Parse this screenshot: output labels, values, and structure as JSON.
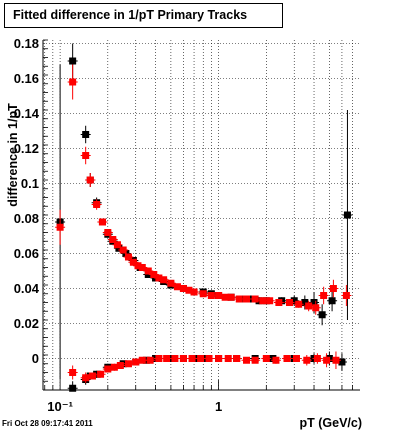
{
  "footer": "Fri Oct 28 09:17:41 2011",
  "chart_data": {
    "type": "scatter",
    "title": "Fitted difference in 1/pT  Primary Tracks",
    "xlabel": "pT (GeV/c)",
    "ylabel": "difference in 1/pT",
    "xscale": "log",
    "xlim": [
      0.078,
      7.8
    ],
    "ylim": [
      -0.018,
      0.182
    ],
    "grid": true,
    "y_ticks": [
      0,
      0.02,
      0.04,
      0.06,
      0.08,
      0.1,
      0.12,
      0.14,
      0.16,
      0.18
    ],
    "y_tick_labels": [
      "0",
      "0.02",
      "0.04",
      "0.06",
      "0.08",
      "0.1",
      "0.12",
      "0.14",
      "0.16",
      "0.18"
    ],
    "x_major_ticks": [
      0.1,
      1
    ],
    "x_tick_labels": [
      "10⁻¹",
      "1"
    ],
    "series": [
      {
        "color": "#000000",
        "points": [
          [
            0.1,
            0.078,
            0.09
          ],
          [
            0.12,
            0.17,
            0.01
          ],
          [
            0.145,
            0.128,
            0.005
          ],
          [
            0.155,
            0.102,
            0.004
          ],
          [
            0.17,
            0.089,
            0.003
          ],
          [
            0.185,
            0.078,
            0.002
          ],
          [
            0.2,
            0.071,
            0.002
          ],
          [
            0.215,
            0.067,
            0.0015
          ],
          [
            0.235,
            0.063,
            0.0015
          ],
          [
            0.26,
            0.06,
            0.0015
          ],
          [
            0.29,
            0.056,
            0.001
          ],
          [
            0.32,
            0.052,
            0.001
          ],
          [
            0.36,
            0.048,
            0.001
          ],
          [
            0.4,
            0.046,
            0.001
          ],
          [
            0.45,
            0.044,
            0.001
          ],
          [
            0.5,
            0.042,
            0.001
          ],
          [
            0.6,
            0.04,
            0.001
          ],
          [
            0.7,
            0.038,
            0.001
          ],
          [
            0.8,
            0.038,
            0.001
          ],
          [
            0.9,
            0.037,
            0.001
          ],
          [
            1.0,
            0.036,
            0.001
          ],
          [
            1.2,
            0.035,
            0.001
          ],
          [
            1.4,
            0.034,
            0.001
          ],
          [
            1.6,
            0.034,
            0.001
          ],
          [
            1.8,
            0.033,
            0.002
          ],
          [
            2.0,
            0.033,
            0.002
          ],
          [
            2.5,
            0.033,
            0.002
          ],
          [
            3.0,
            0.033,
            0.003
          ],
          [
            3.5,
            0.032,
            0.004
          ],
          [
            4.0,
            0.032,
            0.006
          ],
          [
            4.5,
            0.025,
            0.006
          ],
          [
            5.2,
            0.033,
            0.006
          ],
          [
            6.5,
            0.082,
            0.06
          ],
          [
            0.12,
            -0.017,
            0.004
          ],
          [
            0.145,
            -0.012,
            0.003
          ],
          [
            0.155,
            -0.01,
            0.002
          ],
          [
            0.17,
            -0.009,
            0.002
          ],
          [
            0.2,
            -0.005,
            0.002
          ],
          [
            0.25,
            -0.003,
            0.001
          ],
          [
            0.3,
            -0.002,
            0.001
          ],
          [
            0.35,
            -0.001,
            0.001
          ],
          [
            0.4,
            0.0,
            0.001
          ],
          [
            0.5,
            0.0,
            0.001
          ],
          [
            0.6,
            0.0,
            0.001
          ],
          [
            0.7,
            0.0,
            0.001
          ],
          [
            0.8,
            0.0,
            0.001
          ],
          [
            1.0,
            0.0,
            0.001
          ],
          [
            1.3,
            0.0,
            0.001
          ],
          [
            1.7,
            0.0,
            0.001
          ],
          [
            2.2,
            0.0,
            0.002
          ],
          [
            3.0,
            0.0,
            0.002
          ],
          [
            4.0,
            0.0,
            0.003
          ],
          [
            5.0,
            0.0,
            0.004
          ],
          [
            6.0,
            -0.002,
            0.005
          ]
        ]
      },
      {
        "color": "#ff0000",
        "points": [
          [
            0.1,
            0.075,
            0.01
          ],
          [
            0.12,
            0.158,
            0.01
          ],
          [
            0.145,
            0.116,
            0.005
          ],
          [
            0.155,
            0.102,
            0.004
          ],
          [
            0.17,
            0.088,
            0.003
          ],
          [
            0.185,
            0.078,
            0.002
          ],
          [
            0.2,
            0.072,
            0.002
          ],
          [
            0.215,
            0.068,
            0.0015
          ],
          [
            0.23,
            0.065,
            0.0015
          ],
          [
            0.25,
            0.062,
            0.0015
          ],
          [
            0.27,
            0.058,
            0.001
          ],
          [
            0.29,
            0.055,
            0.001
          ],
          [
            0.31,
            0.053,
            0.001
          ],
          [
            0.33,
            0.052,
            0.001
          ],
          [
            0.36,
            0.05,
            0.001
          ],
          [
            0.39,
            0.048,
            0.001
          ],
          [
            0.42,
            0.046,
            0.001
          ],
          [
            0.45,
            0.045,
            0.001
          ],
          [
            0.5,
            0.043,
            0.001
          ],
          [
            0.55,
            0.041,
            0.001
          ],
          [
            0.6,
            0.04,
            0.001
          ],
          [
            0.65,
            0.039,
            0.001
          ],
          [
            0.7,
            0.038,
            0.001
          ],
          [
            0.8,
            0.037,
            0.001
          ],
          [
            0.9,
            0.036,
            0.001
          ],
          [
            1.0,
            0.036,
            0.001
          ],
          [
            1.1,
            0.035,
            0.001
          ],
          [
            1.2,
            0.035,
            0.001
          ],
          [
            1.35,
            0.034,
            0.001
          ],
          [
            1.5,
            0.034,
            0.001
          ],
          [
            1.7,
            0.034,
            0.001
          ],
          [
            1.9,
            0.033,
            0.001
          ],
          [
            2.1,
            0.033,
            0.001
          ],
          [
            2.4,
            0.032,
            0.002
          ],
          [
            2.8,
            0.032,
            0.002
          ],
          [
            3.2,
            0.031,
            0.002
          ],
          [
            3.7,
            0.03,
            0.003
          ],
          [
            4.1,
            0.029,
            0.004
          ],
          [
            4.6,
            0.036,
            0.005
          ],
          [
            5.3,
            0.04,
            0.005
          ],
          [
            6.4,
            0.036,
            0.006
          ],
          [
            0.12,
            -0.008,
            0.004
          ],
          [
            0.145,
            -0.011,
            0.003
          ],
          [
            0.16,
            -0.01,
            0.002
          ],
          [
            0.18,
            -0.009,
            0.002
          ],
          [
            0.2,
            -0.006,
            0.002
          ],
          [
            0.22,
            -0.005,
            0.002
          ],
          [
            0.24,
            -0.004,
            0.001
          ],
          [
            0.27,
            -0.003,
            0.001
          ],
          [
            0.3,
            -0.002,
            0.001
          ],
          [
            0.33,
            -0.001,
            0.001
          ],
          [
            0.37,
            -0.001,
            0.001
          ],
          [
            0.42,
            0.0,
            0.001
          ],
          [
            0.47,
            0.0,
            0.001
          ],
          [
            0.53,
            0.0,
            0.001
          ],
          [
            0.6,
            0.0,
            0.001
          ],
          [
            0.68,
            0.0,
            0.001
          ],
          [
            0.77,
            0.0,
            0.001
          ],
          [
            0.87,
            0.0,
            0.001
          ],
          [
            1.0,
            0.0,
            0.001
          ],
          [
            1.15,
            0.0,
            0.001
          ],
          [
            1.3,
            0.0,
            0.001
          ],
          [
            1.5,
            -0.001,
            0.001
          ],
          [
            1.7,
            -0.001,
            0.001
          ],
          [
            2.0,
            0.0,
            0.001
          ],
          [
            2.3,
            -0.001,
            0.002
          ],
          [
            2.7,
            0.0,
            0.002
          ],
          [
            3.1,
            0.0,
            0.002
          ],
          [
            3.6,
            -0.001,
            0.003
          ],
          [
            4.2,
            0.0,
            0.003
          ],
          [
            4.8,
            -0.001,
            0.004
          ],
          [
            5.5,
            -0.001,
            0.005
          ]
        ]
      }
    ]
  }
}
